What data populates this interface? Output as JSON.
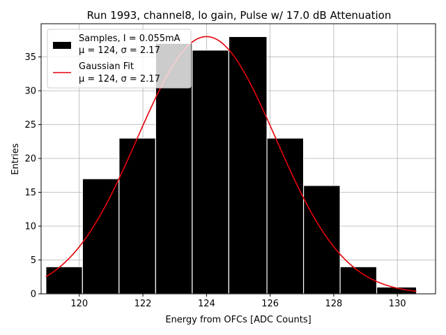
{
  "chart_data": {
    "type": "bar",
    "title": "Run 1993, channel8, lo gain, Pulse w/ 17.0 dB Attenuation",
    "xlabel": "Energy from OFCs [ADC Counts]",
    "ylabel": "Entries",
    "xlim": [
      118.8,
      131.2
    ],
    "ylim": [
      0,
      39.9
    ],
    "xticks": [
      120,
      122,
      124,
      126,
      128,
      130
    ],
    "yticks": [
      0,
      5,
      10,
      15,
      20,
      25,
      30,
      35
    ],
    "grid": true,
    "legend_position": "top-left",
    "bins": {
      "edges": [
        118.95,
        120.1,
        121.25,
        122.4,
        123.55,
        124.7,
        125.9,
        127.05,
        128.2,
        129.35,
        130.6
      ],
      "counts": [
        4,
        17,
        23,
        37,
        36,
        38,
        23,
        16,
        4,
        1
      ],
      "name": "Samples, I = 0.055mA",
      "stats": "μ = 124, σ = 2.17",
      "color": "#000000"
    },
    "fit": {
      "name": "Gaussian Fit",
      "stats": "μ = 124, σ = 2.17",
      "mu": 124.0,
      "sigma": 2.17,
      "amplitude": 38.0,
      "x_range": [
        118.95,
        130.6
      ],
      "color": "#e8000b"
    }
  }
}
